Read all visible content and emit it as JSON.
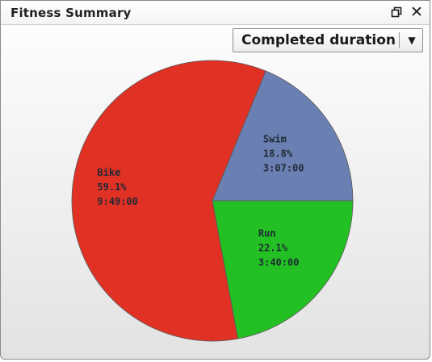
{
  "window": {
    "title": "Fitness Summary",
    "controls": {
      "restore_icon": "restore-window-icon",
      "close_icon": "close-icon"
    }
  },
  "metric_select": {
    "selected": "Completed duration",
    "arrow_icon": "chevron-down-icon"
  },
  "chart_data": {
    "type": "pie",
    "slices": [
      {
        "name": "Swim",
        "percent": 18.8,
        "percent_label": "18.8%",
        "duration": "3:07:00",
        "color": "#6a7fb2"
      },
      {
        "name": "Run",
        "percent": 22.1,
        "percent_label": "22.1%",
        "duration": "3:40:00",
        "color": "#22c022"
      },
      {
        "name": "Bike",
        "percent": 59.1,
        "percent_label": "59.1%",
        "duration": "9:49:00",
        "color": "#e03124"
      }
    ]
  }
}
